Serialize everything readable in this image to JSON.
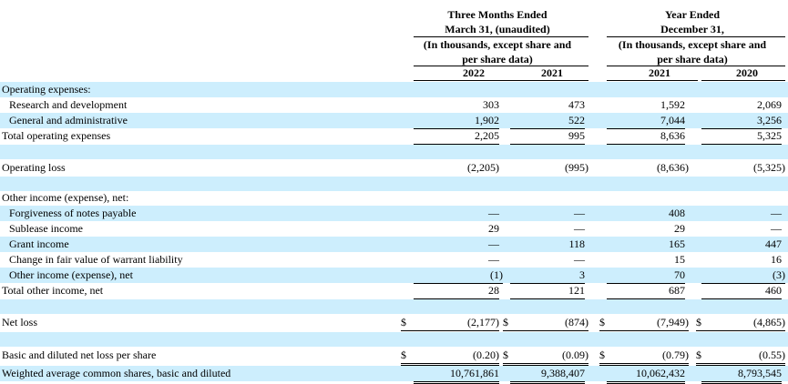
{
  "headers": {
    "group1": [
      "Three Months Ended",
      "March 31, (unaudited)",
      "(In thousands, except share and",
      "per share data)"
    ],
    "group2": [
      "Year Ended",
      "December 31,",
      "(In thousands, except share and",
      "per share data)"
    ],
    "columns": [
      "2022",
      "2021",
      "2021",
      "2020"
    ]
  },
  "rows": [
    {
      "label": "Operating expenses:",
      "values": [
        "",
        "",
        "",
        ""
      ]
    },
    {
      "label": "Research and development",
      "values": [
        "303",
        "473",
        "1,592",
        "2,069"
      ]
    },
    {
      "label": "General and administrative",
      "values": [
        "1,902",
        "522",
        "7,044",
        "3,256"
      ]
    },
    {
      "label": "Total operating expenses",
      "values": [
        "2,205",
        "995",
        "8,636",
        "5,325"
      ]
    },
    {
      "label": "Operating loss",
      "values": [
        "(2,205)",
        "(995)",
        "(8,636)",
        "(5,325)"
      ]
    },
    {
      "label": "Other income (expense), net:",
      "values": [
        "",
        "",
        "",
        ""
      ]
    },
    {
      "label": "Forgiveness of notes payable",
      "values": [
        "—",
        "—",
        "408",
        "—"
      ]
    },
    {
      "label": "Sublease income",
      "values": [
        "29",
        "—",
        "29",
        "—"
      ]
    },
    {
      "label": "Grant income",
      "values": [
        "—",
        "118",
        "165",
        "447"
      ]
    },
    {
      "label": "Change in fair value of warrant liability",
      "values": [
        "—",
        "—",
        "15",
        "16"
      ]
    },
    {
      "label": "Other income (expense), net",
      "values": [
        "(1)",
        "3",
        "70",
        "(3)"
      ]
    },
    {
      "label": "Total other income, net",
      "values": [
        "28",
        "121",
        "687",
        "460"
      ]
    },
    {
      "label": "Net loss",
      "currency": "$",
      "values": [
        "(2,177)",
        "(874)",
        "(7,949)",
        "(4,865)"
      ]
    },
    {
      "label": "Basic and diluted net loss per share",
      "currency": "$",
      "values": [
        "(0.20)",
        "(0.09)",
        "(0.79)",
        "(0.55)"
      ]
    },
    {
      "label": "Weighted average common shares, basic and diluted",
      "values": [
        "10,761,861",
        "9,388,407",
        "10,062,432",
        "8,793,545"
      ]
    }
  ]
}
